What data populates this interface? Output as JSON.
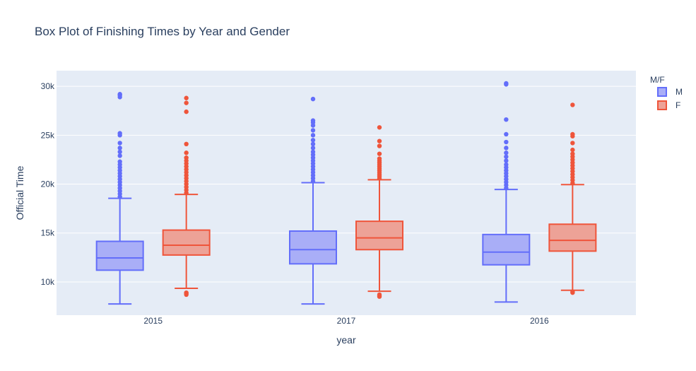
{
  "chart_data": {
    "type": "box",
    "title": "Box Plot of Finishing Times by Year and Gender",
    "xlabel": "year",
    "ylabel": "Official Time",
    "categories": [
      "2015",
      "2017",
      "2016"
    ],
    "ylim": [
      6600,
      31600
    ],
    "y_ticks": [
      10000,
      15000,
      20000,
      25000,
      30000
    ],
    "y_tick_labels": [
      "10k",
      "15k",
      "20k",
      "25k",
      "30k"
    ],
    "grid": true,
    "legend": {
      "title": "M/F",
      "position": "top-right"
    },
    "series": [
      {
        "name": "M",
        "color": "#636efa",
        "fill": "#a9aef7",
        "boxes": [
          {
            "category": "2015",
            "min": 7750,
            "q1": 11200,
            "median": 12450,
            "q3": 14150,
            "max": 18550,
            "outliers": [
              18700,
              19000,
              19300,
              19600,
              19900,
              20200,
              20500,
              20800,
              21100,
              21400,
              21700,
              22000,
              22300,
              22900,
              23300,
              23700,
              24200,
              25000,
              25200,
              28900,
              29100,
              29200
            ]
          },
          {
            "category": "2017",
            "min": 7750,
            "q1": 11850,
            "median": 13300,
            "q3": 15200,
            "max": 20150,
            "outliers": [
              20300,
              20600,
              20900,
              21200,
              21500,
              21800,
              22100,
              22400,
              22700,
              23000,
              23300,
              23700,
              24100,
              24500,
              25000,
              25500,
              26000,
              26300,
              26500,
              28700
            ]
          },
          {
            "category": "2016",
            "min": 7950,
            "q1": 11750,
            "median": 13050,
            "q3": 14850,
            "max": 19450,
            "outliers": [
              19600,
              19900,
              20200,
              20500,
              20800,
              21100,
              21400,
              21700,
              22000,
              22400,
              22800,
              23200,
              23700,
              24300,
              25100,
              26600,
              30200,
              30300
            ]
          }
        ]
      },
      {
        "name": "F",
        "color": "#ef553b",
        "fill": "#eda297",
        "boxes": [
          {
            "category": "2015",
            "min": 9350,
            "q1": 12750,
            "median": 13750,
            "q3": 15300,
            "max": 18950,
            "outliers": [
              8700,
              8800,
              8900,
              19100,
              19400,
              19700,
              20000,
              20300,
              20600,
              20900,
              21200,
              21500,
              21800,
              22100,
              22400,
              22700,
              23200,
              24100,
              27400,
              28300,
              28800
            ]
          },
          {
            "category": "2017",
            "min": 9050,
            "q1": 13300,
            "median": 14500,
            "q3": 16200,
            "max": 20450,
            "outliers": [
              8500,
              8600,
              8700,
              20600,
              20800,
              21000,
              21200,
              21400,
              21600,
              21800,
              22000,
              22200,
              22400,
              22600,
              23100,
              23900,
              24400,
              25800
            ]
          },
          {
            "category": "2016",
            "min": 9150,
            "q1": 13150,
            "median": 14250,
            "q3": 15900,
            "max": 19950,
            "outliers": [
              8900,
              9000,
              20100,
              20400,
              20700,
              21000,
              21300,
              21600,
              21900,
              22200,
              22500,
              22800,
              23100,
              23500,
              24200,
              24900,
              25100,
              28100
            ]
          }
        ]
      }
    ]
  }
}
